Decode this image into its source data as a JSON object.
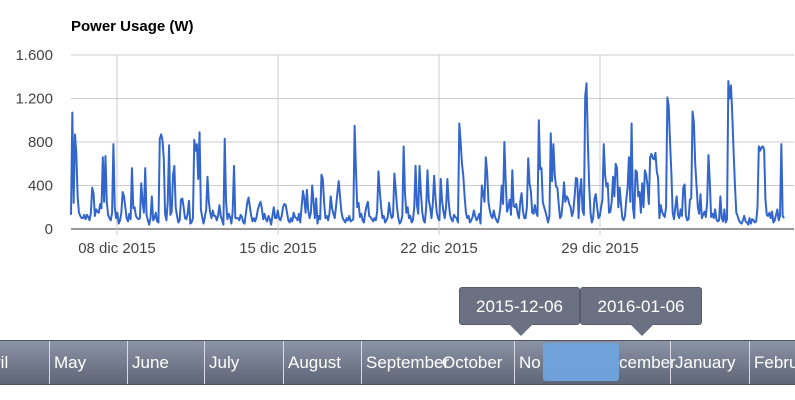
{
  "chart_data": {
    "type": "line",
    "title": "Power Usage (W)",
    "xlabel": "",
    "ylabel": "",
    "x_start": "2015-12-06",
    "x_end": "2016-01-06",
    "x_ticks": [
      {
        "date": "2015-12-08",
        "label": "08 dic 2015"
      },
      {
        "date": "2015-12-15",
        "label": "15 dic 2015"
      },
      {
        "date": "2015-12-22",
        "label": "22 dic 2015"
      },
      {
        "date": "2015-12-29",
        "label": "29 dic 2015"
      }
    ],
    "ylim": [
      0,
      1600
    ],
    "y_ticks": [
      {
        "value": 0,
        "label": "0"
      },
      {
        "value": 400,
        "label": "400"
      },
      {
        "value": 800,
        "label": "800"
      },
      {
        "value": 1200,
        "label": "1.200"
      },
      {
        "value": 1600,
        "label": "1.600"
      }
    ],
    "grid": true,
    "legend": "none",
    "color": "#3366cc",
    "series": [
      {
        "values": [
          130,
          1070,
          240,
          870,
          700,
          300,
          150,
          120,
          100,
          100,
          130,
          90,
          130,
          110,
          80,
          150,
          380,
          330,
          120,
          180,
          160,
          150,
          230,
          190,
          660,
          250,
          670,
          250,
          130,
          100,
          80,
          150,
          780,
          200,
          100,
          150,
          50,
          80,
          150,
          340,
          300,
          200,
          100,
          70,
          140,
          90,
          560,
          190,
          200,
          120,
          100,
          90,
          100,
          420,
          250,
          150,
          560,
          130,
          80,
          40,
          100,
          300,
          80,
          100,
          150,
          70,
          60,
          830,
          870,
          820,
          650,
          140,
          80,
          250,
          770,
          130,
          160,
          500,
          580,
          200,
          120,
          60,
          80,
          270,
          280,
          200,
          100,
          90,
          140,
          260,
          50,
          60,
          100,
          820,
          720,
          780,
          460,
          890,
          180,
          110,
          50,
          110,
          180,
          480,
          250,
          150,
          100,
          170,
          120,
          120,
          80,
          120,
          220,
          120,
          80,
          40,
          830,
          250,
          90,
          140,
          110,
          50,
          160,
          580,
          100,
          100,
          100,
          80,
          130,
          110,
          60,
          50,
          150,
          240,
          290,
          200,
          120,
          70,
          100,
          70,
          110,
          180,
          220,
          250,
          190,
          90,
          140,
          90,
          70,
          120,
          90,
          40,
          120,
          200,
          100,
          100,
          170,
          100,
          80,
          120,
          200,
          230,
          220,
          150,
          80,
          60,
          100,
          70,
          150,
          110,
          100,
          80,
          140,
          60,
          200,
          350,
          280,
          150,
          360,
          170,
          100,
          150,
          400,
          250,
          100,
          280,
          50,
          120,
          90,
          500,
          460,
          240,
          100,
          120,
          80,
          140,
          300,
          190,
          140,
          100,
          210,
          330,
          440,
          300,
          160,
          100,
          80,
          60,
          100,
          80,
          120,
          70,
          80,
          90,
          950,
          550,
          200,
          240,
          110,
          140,
          80,
          60,
          150,
          210,
          250,
          120,
          110,
          90,
          70,
          100,
          80,
          160,
          530,
          350,
          200,
          100,
          120,
          60,
          80,
          110,
          240,
          150,
          100,
          120,
          510,
          370,
          200,
          100,
          50,
          70,
          120,
          760,
          330,
          150,
          200,
          100,
          120,
          60,
          80,
          200,
          580,
          220,
          140,
          580,
          340,
          160,
          80,
          60,
          200,
          540,
          260,
          200,
          100,
          230,
          490,
          290,
          150,
          100,
          80,
          460,
          260,
          160,
          100,
          200,
          460,
          250,
          130,
          90,
          70,
          130,
          110,
          100,
          60,
          970,
          800,
          600,
          490,
          300,
          150,
          100,
          120,
          60,
          80,
          110,
          170,
          120,
          80,
          100,
          140,
          50,
          400,
          330,
          250,
          660,
          520,
          250,
          170,
          120,
          100,
          170,
          110,
          80,
          60,
          110,
          200,
          400,
          230,
          800,
          440,
          160,
          200,
          270,
          130,
          540,
          210,
          200,
          230,
          140,
          100,
          250,
          330,
          170,
          100,
          100,
          200,
          650,
          420,
          350,
          150,
          140,
          220,
          150,
          120,
          1000,
          550,
          560,
          250,
          200,
          160,
          110,
          60,
          120,
          880,
          440,
          780,
          500,
          390,
          380,
          230,
          100,
          120,
          240,
          430,
          250,
          300,
          280,
          230,
          200,
          120,
          160,
          300,
          470,
          460,
          100,
          350,
          460,
          170,
          130,
          1220,
          1340,
          800,
          400,
          150,
          60,
          100,
          280,
          320,
          200,
          100,
          120,
          200,
          270,
          780,
          500,
          390,
          420,
          150,
          160,
          250,
          480,
          300,
          600,
          560,
          200,
          380,
          230,
          100,
          80,
          120,
          270,
          380,
          660,
          250,
          970,
          200,
          100,
          540,
          520,
          300,
          340,
          150,
          420,
          200,
          540,
          500,
          400,
          230,
          660,
          690,
          650,
          640,
          700,
          530,
          470,
          100,
          220,
          160,
          130,
          110,
          200,
          1210,
          1130,
          800,
          520,
          150,
          90,
          200,
          300,
          130,
          100,
          180,
          120,
          380,
          410,
          120,
          80,
          90,
          270,
          280,
          1080,
          980,
          600,
          400,
          200,
          140,
          320,
          100,
          130,
          160,
          110,
          240,
          680,
          440,
          110,
          140,
          100,
          180,
          90,
          70,
          80,
          300,
          100,
          70,
          180,
          60,
          90,
          1360,
          1200,
          1320,
          1040,
          700,
          400,
          150,
          120,
          80,
          60,
          50,
          80,
          120,
          70,
          60,
          40,
          100,
          50,
          90,
          80,
          60,
          70,
          200,
          760,
          720,
          750,
          760,
          730,
          270,
          130,
          120,
          150,
          100,
          160,
          60,
          80,
          130,
          180,
          80,
          120,
          780,
          120,
          100
        ]
      }
    ]
  },
  "navigator": {
    "months": [
      "ril",
      "May",
      "June",
      "July",
      "August",
      "September",
      "October",
      "No",
      "cember",
      "January",
      "Febru"
    ],
    "range_start_label": "2015-12-06",
    "range_end_label": "2016-01-06",
    "selection_color": "#6fa3de"
  }
}
